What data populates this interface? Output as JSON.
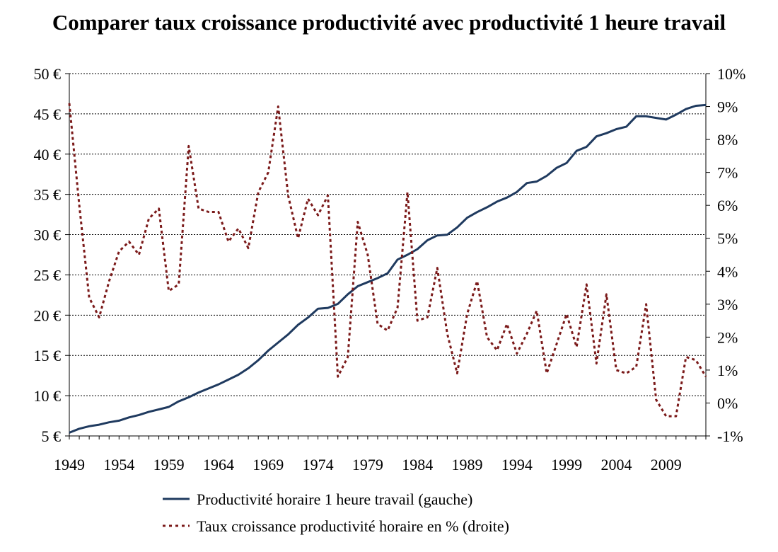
{
  "chart_data": {
    "type": "line",
    "title": "Comparer taux croissance productivité avec productivité 1 heure travail",
    "x_ticks": [
      1949,
      1954,
      1959,
      1964,
      1969,
      1974,
      1979,
      1984,
      1989,
      1994,
      1999,
      2004,
      2009
    ],
    "xlim": [
      1949,
      2013
    ],
    "y_left": {
      "ylim": [
        5,
        50
      ],
      "ticks": [
        5,
        10,
        15,
        20,
        25,
        30,
        35,
        40,
        45,
        50
      ],
      "tick_labels": [
        "5 €",
        "10 €",
        "15 €",
        "20 €",
        "25 €",
        "30 €",
        "35 €",
        "40 €",
        "45 €",
        "50 €"
      ]
    },
    "y_right": {
      "ylim": [
        -1,
        10
      ],
      "ticks": [
        -1,
        0,
        1,
        2,
        3,
        4,
        5,
        6,
        7,
        8,
        9,
        10
      ],
      "tick_labels": [
        "-1%",
        "0%",
        "1%",
        "2%",
        "3%",
        "4%",
        "5%",
        "6%",
        "7%",
        "8%",
        "9%",
        "10%"
      ]
    },
    "grid": "horizontal dotted",
    "legend_position": "bottom",
    "x": [
      1949,
      1950,
      1951,
      1952,
      1953,
      1954,
      1955,
      1956,
      1957,
      1958,
      1959,
      1960,
      1961,
      1962,
      1963,
      1964,
      1965,
      1966,
      1967,
      1968,
      1969,
      1970,
      1971,
      1972,
      1973,
      1974,
      1975,
      1976,
      1977,
      1978,
      1979,
      1980,
      1981,
      1982,
      1983,
      1984,
      1985,
      1986,
      1987,
      1988,
      1989,
      1990,
      1991,
      1992,
      1993,
      1994,
      1995,
      1996,
      1997,
      1998,
      1999,
      2000,
      2001,
      2002,
      2003,
      2004,
      2005,
      2006,
      2007,
      2008,
      2009,
      2010,
      2011,
      2012,
      2013
    ],
    "series": [
      {
        "name": "Productivité horaire 1 heure travail (gauche)",
        "axis": "left",
        "style": "solid",
        "color": "#1f3a5f",
        "values": [
          5.4,
          5.9,
          6.2,
          6.4,
          6.7,
          6.9,
          7.3,
          7.6,
          8.0,
          8.3,
          8.6,
          9.3,
          9.8,
          10.4,
          10.9,
          11.4,
          12.0,
          12.6,
          13.4,
          14.4,
          15.6,
          16.6,
          17.6,
          18.8,
          19.7,
          20.8,
          20.9,
          21.4,
          22.6,
          23.6,
          24.1,
          24.6,
          25.2,
          26.9,
          27.5,
          28.2,
          29.3,
          29.9,
          30.0,
          30.9,
          32.1,
          32.8,
          33.4,
          34.1,
          34.6,
          35.3,
          36.4,
          36.6,
          37.3,
          38.3,
          38.9,
          40.4,
          40.9,
          42.2,
          42.6,
          43.1,
          43.4,
          44.7,
          44.7,
          44.5,
          44.3,
          44.9,
          45.6,
          46.0,
          46.1
        ]
      },
      {
        "name": "Taux croissance productivité horaire en % (droite)",
        "axis": "right",
        "style": "dotted",
        "color": "#7b1a1a",
        "values": [
          9.1,
          6.0,
          3.2,
          2.6,
          3.7,
          4.6,
          4.9,
          4.5,
          5.6,
          5.9,
          3.4,
          3.6,
          7.8,
          5.9,
          5.8,
          5.8,
          4.9,
          5.3,
          4.7,
          6.4,
          7.0,
          9.0,
          6.3,
          5.0,
          6.2,
          5.7,
          6.3,
          0.8,
          1.4,
          5.5,
          4.5,
          2.4,
          2.2,
          2.9,
          6.4,
          2.5,
          2.6,
          4.1,
          2.1,
          0.9,
          2.7,
          3.7,
          2.0,
          1.6,
          2.4,
          1.5,
          2.1,
          2.8,
          0.9,
          1.8,
          2.7,
          1.7,
          3.6,
          1.2,
          3.3,
          1.0,
          0.9,
          1.1,
          3.0,
          0.1,
          -0.4,
          -0.4,
          1.4,
          1.3,
          0.8
        ]
      }
    ]
  }
}
